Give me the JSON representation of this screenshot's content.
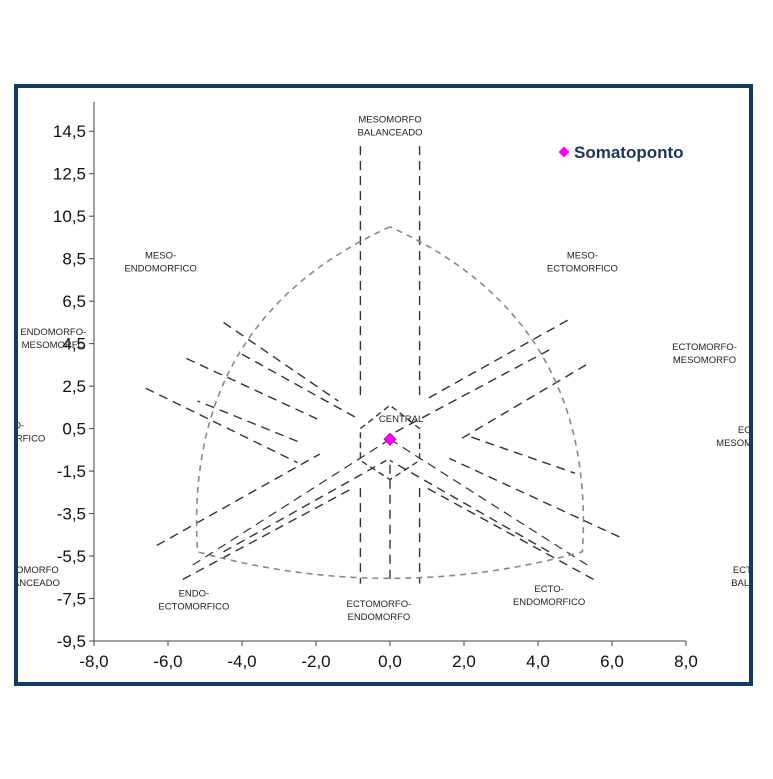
{
  "chart_data": {
    "type": "scatter",
    "title": "",
    "xlabel": "",
    "ylabel": "",
    "xlim": [
      -8.0,
      8.0
    ],
    "ylim": [
      -9.5,
      15.5
    ],
    "x_ticks": [
      "-8,0",
      "-6,0",
      "-4,0",
      "-2,0",
      "0,0",
      "2,0",
      "4,0",
      "6,0",
      "8,0"
    ],
    "y_ticks": [
      "14,5",
      "12,5",
      "10,5",
      "8,5",
      "6,5",
      "4,5",
      "2,5",
      "0,5",
      "-1,5",
      "-3,5",
      "-5,5",
      "-7,5",
      "-9,5"
    ],
    "grid": false,
    "legend": {
      "position": "top-right",
      "entries": [
        {
          "label": "Somatoponto",
          "color": "#ff00ff",
          "marker": "diamond"
        }
      ]
    },
    "series": [
      {
        "name": "Somatoponto",
        "color": "#ff00ff",
        "points": [
          {
            "x": 0.0,
            "y": 0.0
          }
        ]
      }
    ],
    "region_labels": [
      {
        "lines": [
          "MESOMORFO",
          "BALANCEADO"
        ],
        "x": 0.0,
        "y": 14.9
      },
      {
        "lines": [
          "MESO-",
          "ENDOMORFICO"
        ],
        "x": -6.2,
        "y": 8.5
      },
      {
        "lines": [
          "MESO-",
          "ECTOMORFICO"
        ],
        "x": 5.2,
        "y": 8.5
      },
      {
        "lines": [
          "ENDOMORFO-",
          "MESOMORFO"
        ],
        "x": -9.1,
        "y": 4.9
      },
      {
        "lines": [
          "ECTOMORFO-",
          "MESOMORFO"
        ],
        "x": 8.5,
        "y": 4.2
      },
      {
        "lines": [
          "ENDO-",
          "MESOMORFICO"
        ],
        "x": -10.3,
        "y": 0.5
      },
      {
        "lines": [
          "CENTRAL"
        ],
        "x": 0.3,
        "y": 0.8
      },
      {
        "lines": [
          "ECTO-",
          "MESOMORFICO"
        ],
        "x": 9.8,
        "y": 0.3
      },
      {
        "lines": [
          "ENDOMORFO",
          "BALANCEADO"
        ],
        "x": -9.8,
        "y": -6.3
      },
      {
        "lines": [
          "ECTOMORFO",
          "BALANCEADO"
        ],
        "x": 10.1,
        "y": -6.3
      },
      {
        "lines": [
          "ENDO-",
          "ECTOMORFICO"
        ],
        "x": -5.3,
        "y": -7.4
      },
      {
        "lines": [
          "ECTOMORFO-",
          "ENDOMORFO"
        ],
        "x": -0.3,
        "y": -7.9
      },
      {
        "lines": [
          "ECTO-",
          "ENDOMORFICO"
        ],
        "x": 4.3,
        "y": -7.2
      }
    ]
  }
}
